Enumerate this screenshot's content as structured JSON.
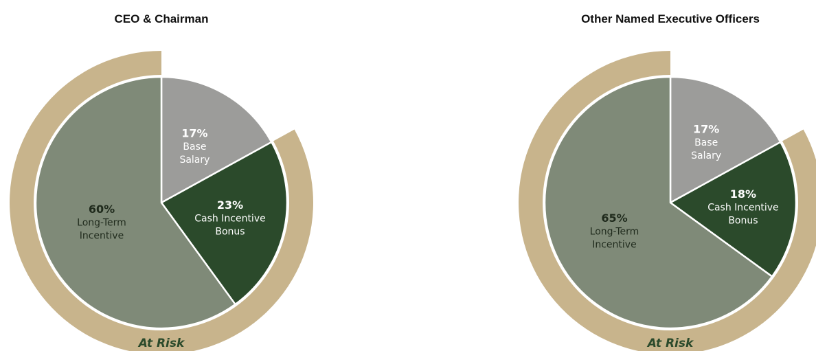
{
  "chart_data": [
    {
      "type": "pie",
      "title": "CEO & Chairman",
      "slices": [
        {
          "name": "Base Salary",
          "label_lines": [
            "Base",
            "Salary"
          ],
          "percent_label": "17%",
          "value": 17,
          "color": "#9c9c9a",
          "text_color": "#ffffff"
        },
        {
          "name": "Cash Incentive Bonus",
          "label_lines": [
            "Cash Incentive",
            "Bonus"
          ],
          "percent_label": "23%",
          "value": 23,
          "color": "#2b4a2b",
          "text_color": "#ffffff"
        },
        {
          "name": "Long-Term Incentive",
          "label_lines": [
            "Long-Term",
            "Incentive"
          ],
          "percent_label": "60%",
          "value": 60,
          "color": "#7f8a78",
          "text_color": "#1f2a1c"
        }
      ],
      "at_risk": {
        "label": "At Risk",
        "covers": [
          "Cash Incentive Bonus",
          "Long-Term Incentive"
        ],
        "color": "#c8b48c",
        "label_color": "#2b4a2b"
      }
    },
    {
      "type": "pie",
      "title": "Other Named Executive Officers",
      "slices": [
        {
          "name": "Base Salary",
          "label_lines": [
            "Base",
            "Salary"
          ],
          "percent_label": "17%",
          "value": 17,
          "color": "#9c9c9a",
          "text_color": "#ffffff"
        },
        {
          "name": "Cash Incentive Bonus",
          "label_lines": [
            "Cash Incentive",
            "Bonus"
          ],
          "percent_label": "18%",
          "value": 18,
          "color": "#2b4a2b",
          "text_color": "#ffffff"
        },
        {
          "name": "Long-Term Incentive",
          "label_lines": [
            "Long-Term",
            "Incentive"
          ],
          "percent_label": "65%",
          "value": 65,
          "color": "#7f8a78",
          "text_color": "#1f2a1c"
        }
      ],
      "at_risk": {
        "label": "At Risk",
        "covers": [
          "Cash Incentive Bonus",
          "Long-Term Incentive"
        ],
        "color": "#c8b48c",
        "label_color": "#2b4a2b"
      }
    }
  ]
}
